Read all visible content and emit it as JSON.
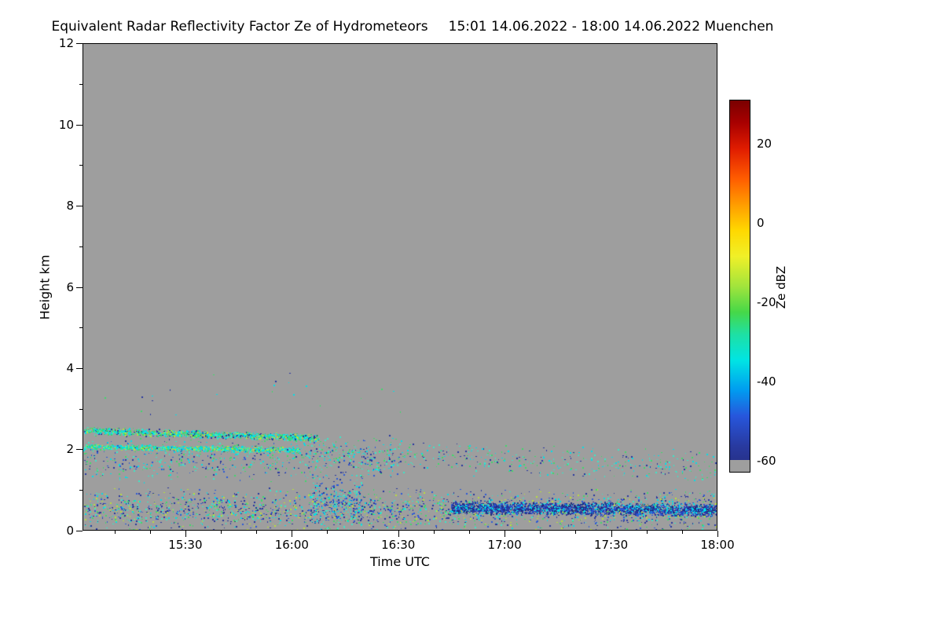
{
  "title": {
    "main": "Equivalent Radar Reflectivity Factor Ze of Hydrometeors",
    "range": "15:01 14.06.2022 - 18:00 14.06.2022 Muenchen"
  },
  "axes": {
    "xlabel": "Time UTC",
    "ylabel": "Height km",
    "x_major": [
      {
        "label": "15:30",
        "f": 0.162
      },
      {
        "label": "16:00",
        "f": 0.3296
      },
      {
        "label": "16:30",
        "f": 0.4972
      },
      {
        "label": "17:00",
        "f": 0.6648
      },
      {
        "label": "17:30",
        "f": 0.8324
      },
      {
        "label": "18:00",
        "f": 1.0
      }
    ],
    "x_minor": [
      0.0503,
      0.1061,
      0.2179,
      0.2737,
      0.3855,
      0.4413,
      0.5531,
      0.6089,
      0.7207,
      0.7765,
      0.8883,
      0.9441
    ],
    "y_major": [
      {
        "label": "0",
        "f": 0
      },
      {
        "label": "2",
        "f": 0.1667
      },
      {
        "label": "4",
        "f": 0.3333
      },
      {
        "label": "6",
        "f": 0.5
      },
      {
        "label": "8",
        "f": 0.6667
      },
      {
        "label": "10",
        "f": 0.8333
      },
      {
        "label": "12",
        "f": 1.0
      }
    ],
    "y_minor": [
      0.0833,
      0.25,
      0.4167,
      0.5833,
      0.75,
      0.9167
    ]
  },
  "colorbar": {
    "label": "Ze dBZ",
    "ticks": [
      {
        "label": "20",
        "f": 0.117
      },
      {
        "label": "0",
        "f": 0.33
      },
      {
        "label": "-20",
        "f": 0.543
      },
      {
        "label": "-40",
        "f": 0.755
      },
      {
        "label": "-60",
        "f": 0.968
      }
    ],
    "stops": [
      {
        "c": "#7a0000",
        "p": 0
      },
      {
        "c": "#a80000",
        "p": 6
      },
      {
        "c": "#e01c00",
        "p": 13
      },
      {
        "c": "#ff5c00",
        "p": 21
      },
      {
        "c": "#ff9c00",
        "p": 28
      },
      {
        "c": "#ffd800",
        "p": 35
      },
      {
        "c": "#f0f028",
        "p": 42
      },
      {
        "c": "#a2e43c",
        "p": 50
      },
      {
        "c": "#46d848",
        "p": 57
      },
      {
        "c": "#1ee0a4",
        "p": 63
      },
      {
        "c": "#00e4e4",
        "p": 70
      },
      {
        "c": "#009cf0",
        "p": 78
      },
      {
        "c": "#2756dc",
        "p": 85
      },
      {
        "c": "#283aa0",
        "p": 93
      },
      {
        "c": "#27338e",
        "p": 96.8
      },
      {
        "c": "#9e9e9e",
        "p": 96.8
      },
      {
        "c": "#9e9e9e",
        "p": 100
      }
    ]
  },
  "plot": {
    "bg": "#9e9e9e",
    "seed": 11,
    "bands": [
      {
        "name": "cloud-streak-upper",
        "t0": 0.0,
        "t1": 0.37,
        "c0": 2.46,
        "c1": 2.28,
        "spread": 0.1,
        "count": 1300,
        "colors": [
          "#00e0e8",
          "#00e0e8",
          "#38e8c8",
          "#3fd96a",
          "#3fd96a",
          "#b8e03a",
          "#27379e"
        ]
      },
      {
        "name": "cloud-streak-lower",
        "t0": 0.0,
        "t1": 0.34,
        "c0": 2.06,
        "c1": 1.98,
        "spread": 0.08,
        "count": 950,
        "colors": [
          "#00e0e8",
          "#00e0e8",
          "#38e8c8",
          "#3fd96a",
          "#b8e03a"
        ]
      },
      {
        "name": "inter-layer-scatter",
        "t0": 0.0,
        "t1": 0.5,
        "c0": 1.75,
        "c1": 1.75,
        "spread": 0.6,
        "count": 650,
        "colors": [
          "#00e0e8",
          "#38e8c8",
          "#27379e",
          "#3fd96a",
          "#2b59d8"
        ]
      },
      {
        "name": "mid-scatter-late",
        "t0": 0.34,
        "t1": 1.0,
        "c0": 1.95,
        "c1": 1.55,
        "spread": 0.45,
        "count": 520,
        "colors": [
          "#00e0e8",
          "#38e8c8",
          "#3fd96a",
          "#27379e"
        ]
      },
      {
        "name": "boundary-layer-scatter",
        "t0": 0.0,
        "t1": 1.0,
        "c0": 0.5,
        "c1": 0.5,
        "spread": 0.55,
        "count": 2300,
        "colors": [
          "#00e0e8",
          "#38e8c8",
          "#3fd96a",
          "#b8e03a",
          "#2b59d8",
          "#27379e",
          "#27379e"
        ]
      },
      {
        "name": "shallow-column",
        "t0": 0.36,
        "t1": 0.44,
        "c0": 0.7,
        "c1": 0.7,
        "spread": 0.7,
        "count": 260,
        "colors": [
          "#00e0e8",
          "#38e8c8",
          "#27379e",
          "#2b59d8"
        ]
      },
      {
        "name": "surface-blue-band",
        "t0": 0.58,
        "t1": 1.0,
        "c0": 0.56,
        "c1": 0.5,
        "spread": 0.17,
        "count": 2700,
        "colors": [
          "#27379e",
          "#27379e",
          "#2b59d8",
          "#1e2a7a",
          "#00e0e8"
        ]
      },
      {
        "name": "isolated-high-dots",
        "t0": 0.03,
        "t1": 0.5,
        "c0": 3.2,
        "c1": 3.6,
        "spread": 0.8,
        "count": 22,
        "colors": [
          "#3fd96a",
          "#00e0e8",
          "#27379e"
        ]
      }
    ]
  },
  "chart_data": {
    "type": "heatmap",
    "title": "Equivalent Radar Reflectivity Factor Ze of Hydrometeors",
    "time_range": "15:01 14.06.2022 - 18:00 14.06.2022",
    "station": "Muenchen",
    "xlabel": "Time UTC",
    "ylabel": "Height km",
    "x_ticks": [
      "15:30",
      "16:00",
      "16:30",
      "17:00",
      "17:30",
      "18:00"
    ],
    "xlim": [
      "15:01",
      "18:00"
    ],
    "y_ticks": [
      0,
      2,
      4,
      6,
      8,
      10,
      12
    ],
    "ylim": [
      0,
      12
    ],
    "colorbar": {
      "label": "Ze dBZ",
      "ticks": [
        20,
        0,
        -20,
        -40,
        -60
      ],
      "vmin": -63,
      "vmax": 31,
      "palette": "rainbow (dark red high to dark blue low)",
      "below_threshold_color": "gray"
    },
    "background": "no echo / below about -60 dBZ shown as uniform gray over most of the 0-12 km range",
    "features": [
      {
        "region": "broken cloud layer",
        "time": "15:01-16:10",
        "height_km": [
          1.9,
          2.6
        ],
        "ze_dbz": [
          -45,
          -15
        ],
        "description": "two thin broken streaks near 2.0 km and 2.4 km, cyan-green with occasional yellow-green pixels, fading after 16:00"
      },
      {
        "region": "scattered mid-level echoes",
        "time": "16:00-18:00",
        "height_km": [
          1.3,
          2.2
        ],
        "ze_dbz": [
          -55,
          -25
        ],
        "description": "sparse cyan/green speckles thinning with time"
      },
      {
        "region": "boundary-layer echoes",
        "time": "15:01-18:00",
        "height_km": [
          0.0,
          1.1
        ],
        "ze_dbz": [
          -60,
          -25
        ],
        "description": "patchy weak echoes of cyan, green and blue through the whole period"
      },
      {
        "region": "near-surface band",
        "time": "17:00-18:00",
        "height_km": [
          0.3,
          0.7
        ],
        "ze_dbz": [
          -60,
          -45
        ],
        "description": "quasi-continuous dark-blue band near 0.5 km"
      },
      {
        "region": "isolated specks",
        "time": "15:10-16:30",
        "height_km": [
          2.8,
          4.0
        ],
        "ze_dbz": [
          -50,
          -30
        ],
        "description": "a few isolated single-pixel echoes"
      }
    ]
  }
}
